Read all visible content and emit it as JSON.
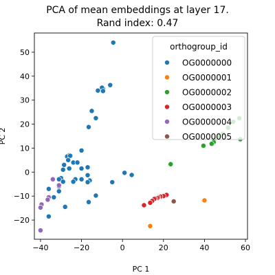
{
  "chart_data": {
    "type": "scatter",
    "title": "PCA of mean embeddings at layer 17.",
    "subtitle": "Rand index: 0.47",
    "xlabel": "PC 1",
    "ylabel": "PC 2",
    "xlim": [
      -43,
      61
    ],
    "ylim": [
      -28,
      58
    ],
    "xticks": [
      -40,
      -20,
      0,
      20,
      40,
      60
    ],
    "yticks": [
      -20,
      -10,
      0,
      10,
      20,
      30,
      40,
      50
    ],
    "grid": false,
    "legend": {
      "title": "orthogroup_id",
      "placement": "top-right"
    },
    "series": [
      {
        "name": "OG0000000",
        "color": "#1f77b4",
        "points": [
          [
            -4.5,
            54
          ],
          [
            -6,
            36.3
          ],
          [
            -9.5,
            34.8
          ],
          [
            -10,
            35.2
          ],
          [
            -9.5,
            33.8
          ],
          [
            -12,
            34
          ],
          [
            -15,
            25.5
          ],
          [
            -13,
            22.5
          ],
          [
            -16.5,
            18.8
          ],
          [
            -20,
            9
          ],
          [
            -26,
            7
          ],
          [
            -27,
            6.5
          ],
          [
            -25.5,
            6.8
          ],
          [
            -26.5,
            5
          ],
          [
            -24,
            4
          ],
          [
            -28.5,
            3
          ],
          [
            -22,
            4
          ],
          [
            -26,
            1.5
          ],
          [
            -29,
            1
          ],
          [
            -17,
            2
          ],
          [
            -20,
            1.5
          ],
          [
            -17,
            -1.3
          ],
          [
            -16,
            -3.5
          ],
          [
            -17,
            -4.2
          ],
          [
            -20,
            -3
          ],
          [
            -23,
            -3
          ],
          [
            -24,
            -4
          ],
          [
            -30,
            -2.5
          ],
          [
            -31,
            -3
          ],
          [
            -29,
            -4
          ],
          [
            -31,
            -6
          ],
          [
            -31,
            -8
          ],
          [
            -36,
            -7
          ],
          [
            -33.5,
            -10.5
          ],
          [
            -28,
            -14.5
          ],
          [
            -36,
            -18.5
          ],
          [
            -16.5,
            -12.5
          ],
          [
            -13,
            -9.8
          ],
          [
            -5,
            -4.2
          ],
          [
            1,
            -0.3
          ],
          [
            4.5,
            -1.2
          ]
        ]
      },
      {
        "name": "OG0000001",
        "color": "#ff7f0e",
        "points": [
          [
            40,
            -11.8
          ],
          [
            13.5,
            -22.5
          ]
        ]
      },
      {
        "name": "OG0000002",
        "color": "#2ca02c",
        "points": [
          [
            57,
            22.5
          ],
          [
            54,
            21
          ],
          [
            51.5,
            18.5
          ],
          [
            49,
            16
          ],
          [
            47,
            15
          ],
          [
            45,
            14
          ],
          [
            44.5,
            12.5
          ],
          [
            43.5,
            11.8
          ],
          [
            39.5,
            11
          ],
          [
            57.5,
            13.7
          ],
          [
            23.5,
            3.3
          ]
        ]
      },
      {
        "name": "OG0000003",
        "color": "#d62728",
        "points": [
          [
            21.5,
            -9.5
          ],
          [
            20,
            -10
          ],
          [
            18.5,
            -10.2
          ],
          [
            17.5,
            -10.5
          ],
          [
            17,
            -10.8
          ],
          [
            16,
            -11
          ],
          [
            15.5,
            -11.2
          ],
          [
            14.5,
            -12
          ],
          [
            13.5,
            -12.8
          ],
          [
            10.5,
            -13.8
          ]
        ]
      },
      {
        "name": "OG0000004",
        "color": "#9467bd",
        "points": [
          [
            -34,
            -3
          ],
          [
            -31,
            -5.5
          ],
          [
            -36,
            -10.5
          ],
          [
            -36.5,
            -11.5
          ],
          [
            -39.5,
            -13.5
          ],
          [
            -40,
            -14.8
          ],
          [
            -40,
            -24.3
          ]
        ]
      },
      {
        "name": "OG0000005",
        "color": "#8c564b",
        "points": [
          [
            25,
            -12.2
          ]
        ]
      }
    ]
  }
}
